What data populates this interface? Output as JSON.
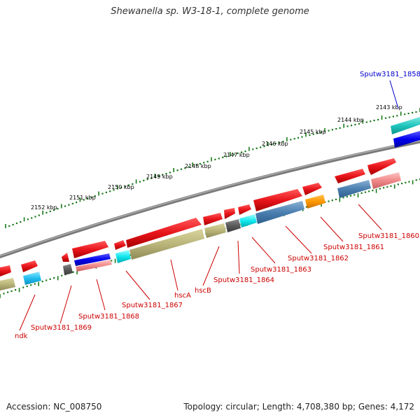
{
  "title": "Shewanella sp. W3-18-1, complete genome",
  "footer": {
    "accession": "Accession: NC_008750",
    "summary": "Topology: circular; Length: 4,708,380 bp; Genes: 4,172"
  },
  "colors": {
    "gene_forward": "#e8151b",
    "backbone": "#808080",
    "ticks": "#1a7a1a",
    "label_red": "#cc0000",
    "label_blue": "#0000cc"
  },
  "kbp_labels": [
    "2143 kbp",
    "2144 kbp",
    "2145 kbp",
    "2146 kbp",
    "2147 kbp",
    "2148 kbp",
    "2149 kbp",
    "2150 kbp",
    "2151 kbp",
    "2152 kbp"
  ],
  "gene_labels": [
    {
      "text": "Sputw3181_1858",
      "color": "blue"
    },
    {
      "text": "Sputw3181_1860",
      "color": "red"
    },
    {
      "text": "Sputw3181_1861",
      "color": "red"
    },
    {
      "text": "Sputw3181_1862",
      "color": "red"
    },
    {
      "text": "Sputw3181_1863",
      "color": "red"
    },
    {
      "text": "Sputw3181_1864",
      "color": "red"
    },
    {
      "text": "hscB",
      "color": "red"
    },
    {
      "text": "hscA",
      "color": "red"
    },
    {
      "text": "Sputw3181_1867",
      "color": "red"
    },
    {
      "text": "Sputw3181_1868",
      "color": "red"
    },
    {
      "text": "Sputw3181_1869",
      "color": "red"
    },
    {
      "text": "ndk",
      "color": "red"
    }
  ]
}
